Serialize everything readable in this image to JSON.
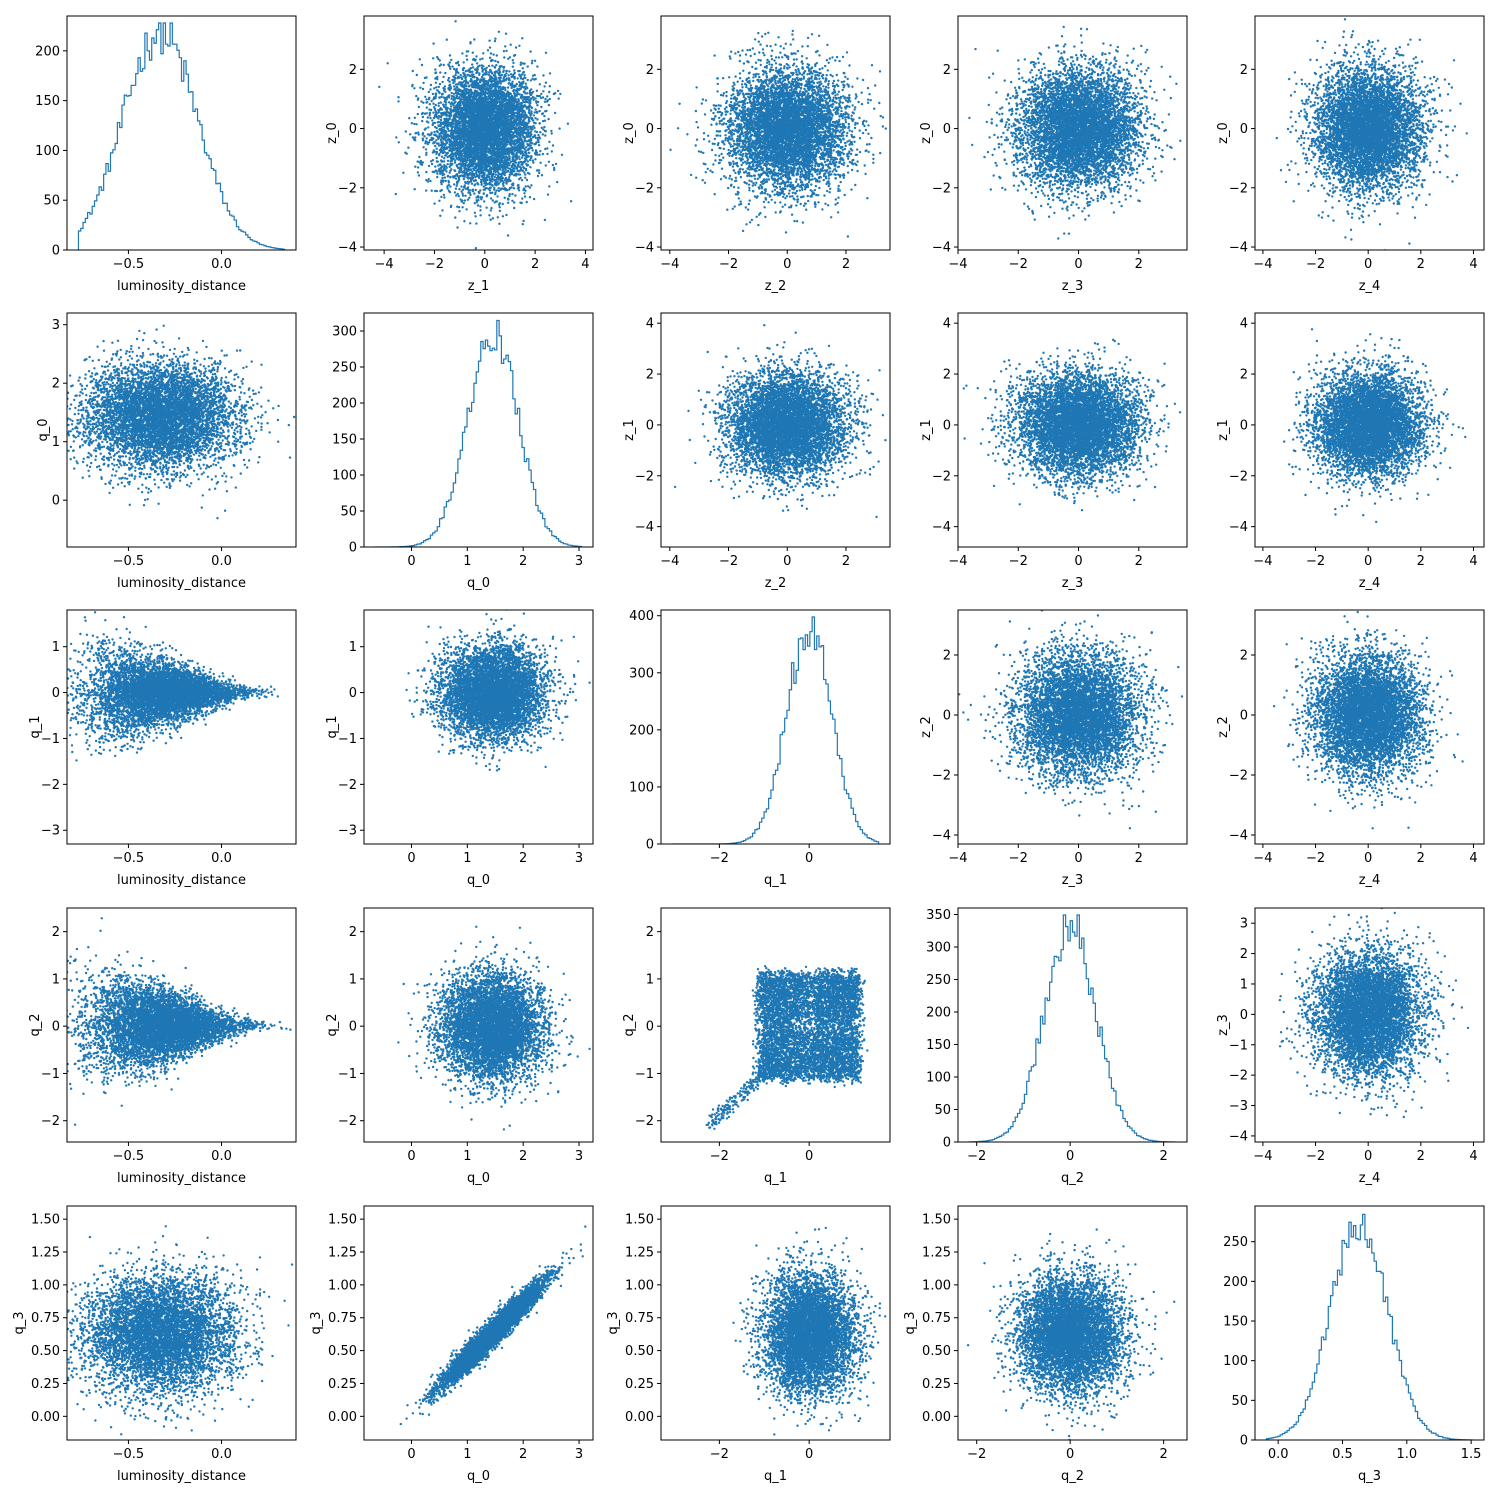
{
  "figure": {
    "type": "corner-grid",
    "color": "#1f77b4",
    "background": "#ffffff"
  },
  "chart_data": [
    {
      "type": "histogram",
      "row": 0,
      "col": 0,
      "xlabel": "luminosity_distance",
      "ylabel": "",
      "xlim": [
        -0.83,
        0.4
      ],
      "ylim": [
        0,
        235
      ],
      "xticks": [
        -0.5,
        0.0
      ],
      "xticklabels": [
        "−0.5",
        "0.0"
      ],
      "yticks": [
        0,
        50,
        100,
        150,
        200
      ],
      "yticklabels": [
        "0",
        "50",
        "100",
        "150",
        "200"
      ],
      "dist": {
        "mean": -0.33,
        "sd": 0.2,
        "count": 10000
      }
    },
    {
      "type": "scatter",
      "row": 0,
      "col": 1,
      "xlabel": "z_1",
      "ylabel": "z_0",
      "xlim": [
        -4.8,
        4.3
      ],
      "ylim": [
        -4.1,
        3.8
      ],
      "xticks": [
        -4,
        -2,
        0,
        2,
        4
      ],
      "xticklabels": [
        "−4",
        "−2",
        "0",
        "2",
        "4"
      ],
      "yticks": [
        -4,
        -2,
        0,
        2
      ],
      "yticklabels": [
        "−4",
        "−2",
        "0",
        "2"
      ],
      "dist": {
        "shape": "gauss",
        "mx": 0,
        "sx": 1,
        "my": 0,
        "sy": 1,
        "n": 6000
      }
    },
    {
      "type": "scatter",
      "row": 0,
      "col": 2,
      "xlabel": "z_2",
      "ylabel": "z_0",
      "xlim": [
        -4.3,
        3.5
      ],
      "ylim": [
        -4.1,
        3.8
      ],
      "xticks": [
        -4,
        -2,
        0,
        2
      ],
      "xticklabels": [
        "−4",
        "−2",
        "0",
        "2"
      ],
      "yticks": [
        -4,
        -2,
        0,
        2
      ],
      "yticklabels": [
        "−4",
        "−2",
        "0",
        "2"
      ],
      "dist": {
        "shape": "gauss",
        "mx": 0,
        "sx": 1,
        "my": 0,
        "sy": 1,
        "n": 6000
      }
    },
    {
      "type": "scatter",
      "row": 0,
      "col": 3,
      "xlabel": "z_3",
      "ylabel": "z_0",
      "xlim": [
        -4.0,
        3.6
      ],
      "ylim": [
        -4.1,
        3.8
      ],
      "xticks": [
        -4,
        -2,
        0,
        2
      ],
      "xticklabels": [
        "−4",
        "−2",
        "0",
        "2"
      ],
      "yticks": [
        -4,
        -2,
        0,
        2
      ],
      "yticklabels": [
        "−4",
        "−2",
        "0",
        "2"
      ],
      "dist": {
        "shape": "gauss",
        "mx": 0,
        "sx": 1,
        "my": 0,
        "sy": 1,
        "n": 6000
      }
    },
    {
      "type": "scatter",
      "row": 0,
      "col": 4,
      "xlabel": "z_4",
      "ylabel": "z_0",
      "xlim": [
        -4.3,
        4.4
      ],
      "ylim": [
        -4.1,
        3.8
      ],
      "xticks": [
        -4,
        -2,
        0,
        2,
        4
      ],
      "xticklabels": [
        "−4",
        "−2",
        "0",
        "2",
        "4"
      ],
      "yticks": [
        -4,
        -2,
        0,
        2
      ],
      "yticklabels": [
        "−4",
        "−2",
        "0",
        "2"
      ],
      "dist": {
        "shape": "gauss",
        "mx": 0,
        "sx": 1,
        "my": 0,
        "sy": 1,
        "n": 6000
      }
    },
    {
      "type": "scatter",
      "row": 1,
      "col": 0,
      "xlabel": "luminosity_distance",
      "ylabel": "q_0",
      "xlim": [
        -0.83,
        0.4
      ],
      "ylim": [
        -0.8,
        3.2
      ],
      "xticks": [
        -0.5,
        0.0
      ],
      "xticklabels": [
        "−0.5",
        "0.0"
      ],
      "yticks": [
        0,
        1,
        2,
        3
      ],
      "yticklabels": [
        "0",
        "1",
        "2",
        "3"
      ],
      "dist": {
        "shape": "gauss",
        "mx": -0.33,
        "sx": 0.2,
        "my": 1.45,
        "sy": 0.45,
        "n": 6000
      }
    },
    {
      "type": "histogram",
      "row": 1,
      "col": 1,
      "xlabel": "q_0",
      "ylabel": "",
      "xlim": [
        -0.85,
        3.25
      ],
      "ylim": [
        0,
        325
      ],
      "xticks": [
        0,
        1,
        2,
        3
      ],
      "xticklabels": [
        "0",
        "1",
        "2",
        "3"
      ],
      "yticks": [
        0,
        50,
        100,
        150,
        200,
        250,
        300
      ],
      "yticklabels": [
        "0",
        "50",
        "100",
        "150",
        "200",
        "250",
        "300"
      ],
      "dist": {
        "mean": 1.45,
        "sd": 0.45,
        "count": 10000
      }
    },
    {
      "type": "scatter",
      "row": 1,
      "col": 2,
      "xlabel": "z_2",
      "ylabel": "z_1",
      "xlim": [
        -4.3,
        3.5
      ],
      "ylim": [
        -4.8,
        4.4
      ],
      "xticks": [
        -4,
        -2,
        0,
        2
      ],
      "xticklabels": [
        "−4",
        "−2",
        "0",
        "2"
      ],
      "yticks": [
        -4,
        -2,
        0,
        2,
        4
      ],
      "yticklabels": [
        "−4",
        "−2",
        "0",
        "2",
        "4"
      ],
      "dist": {
        "shape": "gauss",
        "mx": 0,
        "sx": 1,
        "my": 0,
        "sy": 1,
        "n": 6000
      }
    },
    {
      "type": "scatter",
      "row": 1,
      "col": 3,
      "xlabel": "z_3",
      "ylabel": "z_1",
      "xlim": [
        -4.0,
        3.6
      ],
      "ylim": [
        -4.8,
        4.4
      ],
      "xticks": [
        -4,
        -2,
        0,
        2
      ],
      "xticklabels": [
        "−4",
        "−2",
        "0",
        "2"
      ],
      "yticks": [
        -4,
        -2,
        0,
        2,
        4
      ],
      "yticklabels": [
        "−4",
        "−2",
        "0",
        "2",
        "4"
      ],
      "dist": {
        "shape": "gauss",
        "mx": 0,
        "sx": 1,
        "my": 0,
        "sy": 1,
        "n": 6000
      }
    },
    {
      "type": "scatter",
      "row": 1,
      "col": 4,
      "xlabel": "z_4",
      "ylabel": "z_1",
      "xlim": [
        -4.3,
        4.4
      ],
      "ylim": [
        -4.8,
        4.4
      ],
      "xticks": [
        -4,
        -2,
        0,
        2,
        4
      ],
      "xticklabels": [
        "−4",
        "−2",
        "0",
        "2",
        "4"
      ],
      "yticks": [
        -4,
        -2,
        0,
        2,
        4
      ],
      "yticklabels": [
        "−4",
        "−2",
        "0",
        "2",
        "4"
      ],
      "dist": {
        "shape": "gauss",
        "mx": 0,
        "sx": 1,
        "my": 0,
        "sy": 1,
        "n": 6000
      }
    },
    {
      "type": "scatter",
      "row": 2,
      "col": 0,
      "xlabel": "luminosity_distance",
      "ylabel": "q_1",
      "xlim": [
        -0.83,
        0.4
      ],
      "ylim": [
        -3.3,
        1.8
      ],
      "xticks": [
        -0.5,
        0.0
      ],
      "xticklabels": [
        "−0.5",
        "0.0"
      ],
      "yticks": [
        -3,
        -2,
        -1,
        0,
        1
      ],
      "yticklabels": [
        "−3",
        "−2",
        "−1",
        "0",
        "1"
      ],
      "dist": {
        "shape": "cone",
        "mx": -0.33,
        "sx": 0.2,
        "spread": 0.55,
        "n": 6000
      }
    },
    {
      "type": "scatter",
      "row": 2,
      "col": 1,
      "xlabel": "q_0",
      "ylabel": "q_1",
      "xlim": [
        -0.85,
        3.25
      ],
      "ylim": [
        -3.3,
        1.8
      ],
      "xticks": [
        0,
        1,
        2,
        3
      ],
      "xticklabels": [
        "0",
        "1",
        "2",
        "3"
      ],
      "yticks": [
        -3,
        -2,
        -1,
        0,
        1
      ],
      "yticklabels": [
        "−3",
        "−2",
        "−1",
        "0",
        "1"
      ],
      "dist": {
        "shape": "gauss",
        "mx": 1.45,
        "sx": 0.45,
        "my": 0,
        "sy": 0.5,
        "n": 6000
      }
    },
    {
      "type": "histogram",
      "row": 2,
      "col": 2,
      "xlabel": "q_1",
      "ylabel": "",
      "xlim": [
        -3.3,
        1.8
      ],
      "ylim": [
        0,
        410
      ],
      "xticks": [
        -2,
        0
      ],
      "xticklabels": [
        "−2",
        "0"
      ],
      "yticks": [
        0,
        100,
        200,
        300,
        400
      ],
      "yticklabels": [
        "0",
        "100",
        "200",
        "300",
        "400"
      ],
      "dist": {
        "mean": 0,
        "sd": 0.5,
        "count": 10000
      }
    },
    {
      "type": "scatter",
      "row": 2,
      "col": 3,
      "xlabel": "z_3",
      "ylabel": "z_2",
      "xlim": [
        -4.0,
        3.6
      ],
      "ylim": [
        -4.3,
        3.5
      ],
      "xticks": [
        -4,
        -2,
        0,
        2
      ],
      "xticklabels": [
        "−4",
        "−2",
        "0",
        "2"
      ],
      "yticks": [
        -4,
        -2,
        0,
        2
      ],
      "yticklabels": [
        "−4",
        "−2",
        "0",
        "2"
      ],
      "dist": {
        "shape": "gauss",
        "mx": 0,
        "sx": 1,
        "my": 0,
        "sy": 1,
        "n": 6000
      }
    },
    {
      "type": "scatter",
      "row": 2,
      "col": 4,
      "xlabel": "z_4",
      "ylabel": "z_2",
      "xlim": [
        -4.3,
        4.4
      ],
      "ylim": [
        -4.3,
        3.5
      ],
      "xticks": [
        -4,
        -2,
        0,
        2,
        4
      ],
      "xticklabels": [
        "−4",
        "−2",
        "0",
        "2",
        "4"
      ],
      "yticks": [
        -4,
        -2,
        0,
        2
      ],
      "yticklabels": [
        "−4",
        "−2",
        "0",
        "2"
      ],
      "dist": {
        "shape": "gauss",
        "mx": 0,
        "sx": 1,
        "my": 0,
        "sy": 1,
        "n": 6000
      }
    },
    {
      "type": "scatter",
      "row": 3,
      "col": 0,
      "xlabel": "luminosity_distance",
      "ylabel": "q_2",
      "xlim": [
        -0.83,
        0.4
      ],
      "ylim": [
        -2.45,
        2.5
      ],
      "xticks": [
        -0.5,
        0.0
      ],
      "xticklabels": [
        "−0.5",
        "0.0"
      ],
      "yticks": [
        -2,
        -1,
        0,
        1,
        2
      ],
      "yticklabels": [
        "−2",
        "−1",
        "0",
        "1",
        "2"
      ],
      "dist": {
        "shape": "cone",
        "mx": -0.33,
        "sx": 0.2,
        "spread": 0.6,
        "n": 6000
      }
    },
    {
      "type": "scatter",
      "row": 3,
      "col": 1,
      "xlabel": "q_0",
      "ylabel": "q_2",
      "xlim": [
        -0.85,
        3.25
      ],
      "ylim": [
        -2.45,
        2.5
      ],
      "xticks": [
        0,
        1,
        2,
        3
      ],
      "xticklabels": [
        "0",
        "1",
        "2",
        "3"
      ],
      "yticks": [
        -2,
        -1,
        0,
        1,
        2
      ],
      "yticklabels": [
        "−2",
        "−1",
        "0",
        "1",
        "2"
      ],
      "dist": {
        "shape": "gauss",
        "mx": 1.45,
        "sx": 0.45,
        "my": 0,
        "sy": 0.55,
        "n": 6000
      }
    },
    {
      "type": "scatter",
      "row": 3,
      "col": 2,
      "xlabel": "q_1",
      "ylabel": "q_2",
      "xlim": [
        -3.3,
        1.8
      ],
      "ylim": [
        -2.45,
        2.5
      ],
      "xticks": [
        -2,
        0
      ],
      "xticklabels": [
        "−2",
        "0"
      ],
      "yticks": [
        -2,
        -1,
        0,
        1,
        2
      ],
      "yticklabels": [
        "−2",
        "−1",
        "0",
        "1",
        "2"
      ],
      "dist": {
        "shape": "square",
        "cx": 0,
        "cy": 0,
        "half": 1.1,
        "n": 6000
      }
    },
    {
      "type": "histogram",
      "row": 3,
      "col": 3,
      "xlabel": "q_2",
      "ylabel": "",
      "xlim": [
        -2.4,
        2.5
      ],
      "ylim": [
        0,
        360
      ],
      "xticks": [
        -2,
        0,
        2
      ],
      "xticklabels": [
        "−2",
        "0",
        "2"
      ],
      "yticks": [
        0,
        50,
        100,
        150,
        200,
        250,
        300,
        350
      ],
      "yticklabels": [
        "0",
        "50",
        "100",
        "150",
        "200",
        "250",
        "300",
        "350"
      ],
      "dist": {
        "mean": 0,
        "sd": 0.55,
        "count": 10000
      }
    },
    {
      "type": "scatter",
      "row": 3,
      "col": 4,
      "xlabel": "z_4",
      "ylabel": "z_3",
      "xlim": [
        -4.3,
        4.4
      ],
      "ylim": [
        -4.2,
        3.5
      ],
      "xticks": [
        -4,
        -2,
        0,
        2,
        4
      ],
      "xticklabels": [
        "−4",
        "−2",
        "0",
        "2",
        "4"
      ],
      "yticks": [
        -4,
        -3,
        -2,
        -1,
        0,
        1,
        2,
        3
      ],
      "yticklabels": [
        "−4",
        "−3",
        "−2",
        "−1",
        "0",
        "1",
        "2",
        "3"
      ],
      "dist": {
        "shape": "gauss",
        "mx": 0,
        "sx": 1,
        "my": 0,
        "sy": 1,
        "n": 6000
      }
    },
    {
      "type": "scatter",
      "row": 4,
      "col": 0,
      "xlabel": "luminosity_distance",
      "ylabel": "q_3",
      "xlim": [
        -0.83,
        0.4
      ],
      "ylim": [
        -0.18,
        1.6
      ],
      "xticks": [
        -0.5,
        0.0
      ],
      "xticklabels": [
        "−0.5",
        "0.0"
      ],
      "yticks": [
        0,
        0.25,
        0.5,
        0.75,
        1.0,
        1.25,
        1.5
      ],
      "yticklabels": [
        "0.00",
        "0.25",
        "0.50",
        "0.75",
        "1.00",
        "1.25",
        "1.50"
      ],
      "dist": {
        "shape": "gauss",
        "mx": -0.33,
        "sx": 0.2,
        "my": 0.63,
        "sy": 0.22,
        "n": 6000
      }
    },
    {
      "type": "scatter",
      "row": 4,
      "col": 1,
      "xlabel": "q_0",
      "ylabel": "q_3",
      "xlim": [
        -0.85,
        3.25
      ],
      "ylim": [
        -0.18,
        1.6
      ],
      "xticks": [
        0,
        1,
        2,
        3
      ],
      "xticklabels": [
        "0",
        "1",
        "2",
        "3"
      ],
      "yticks": [
        0,
        0.25,
        0.5,
        0.75,
        1.0,
        1.25,
        1.5
      ],
      "yticklabels": [
        "0.00",
        "0.25",
        "0.50",
        "0.75",
        "1.00",
        "1.25",
        "1.50"
      ],
      "dist": {
        "shape": "linear",
        "mx": 1.45,
        "sx": 0.45,
        "slope": 0.42,
        "intercept": 0.02,
        "noise": 0.05,
        "n": 6000
      }
    },
    {
      "type": "scatter",
      "row": 4,
      "col": 2,
      "xlabel": "q_1",
      "ylabel": "q_3",
      "xlim": [
        -3.3,
        1.8
      ],
      "ylim": [
        -0.18,
        1.6
      ],
      "xticks": [
        -2,
        0
      ],
      "xticklabels": [
        "−2",
        "0"
      ],
      "yticks": [
        0,
        0.25,
        0.5,
        0.75,
        1.0,
        1.25,
        1.5
      ],
      "yticklabels": [
        "0.00",
        "0.25",
        "0.50",
        "0.75",
        "1.00",
        "1.25",
        "1.50"
      ],
      "dist": {
        "shape": "gauss",
        "mx": 0,
        "sx": 0.5,
        "my": 0.63,
        "sy": 0.22,
        "n": 6000
      }
    },
    {
      "type": "scatter",
      "row": 4,
      "col": 3,
      "xlabel": "q_2",
      "ylabel": "q_3",
      "xlim": [
        -2.4,
        2.5
      ],
      "ylim": [
        -0.18,
        1.6
      ],
      "xticks": [
        -2,
        0,
        2
      ],
      "xticklabels": [
        "−2",
        "0",
        "2"
      ],
      "yticks": [
        0,
        0.25,
        0.5,
        0.75,
        1.0,
        1.25,
        1.5
      ],
      "yticklabels": [
        "0.00",
        "0.25",
        "0.50",
        "0.75",
        "1.00",
        "1.25",
        "1.50"
      ],
      "dist": {
        "shape": "gauss",
        "mx": 0,
        "sx": 0.55,
        "my": 0.63,
        "sy": 0.22,
        "n": 6000
      }
    },
    {
      "type": "histogram",
      "row": 4,
      "col": 4,
      "xlabel": "q_3",
      "ylabel": "",
      "xlim": [
        -0.18,
        1.6
      ],
      "ylim": [
        0,
        295
      ],
      "xticks": [
        0,
        0.5,
        1.0,
        1.5
      ],
      "xticklabels": [
        "0.0",
        "0.5",
        "1.0",
        "1.5"
      ],
      "yticks": [
        0,
        50,
        100,
        150,
        200,
        250
      ],
      "yticklabels": [
        "0",
        "50",
        "100",
        "150",
        "200",
        "250"
      ],
      "dist": {
        "mean": 0.63,
        "sd": 0.22,
        "count": 10000
      }
    }
  ]
}
